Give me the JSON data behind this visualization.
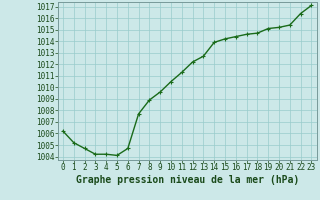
{
  "x": [
    0,
    1,
    2,
    3,
    4,
    5,
    6,
    7,
    8,
    9,
    10,
    11,
    12,
    13,
    14,
    15,
    16,
    17,
    18,
    19,
    20,
    21,
    22,
    23
  ],
  "y": [
    1006.2,
    1005.2,
    1004.7,
    1004.2,
    1004.2,
    1004.1,
    1004.7,
    1007.7,
    1008.9,
    1009.6,
    1010.5,
    1011.3,
    1012.2,
    1012.7,
    1013.9,
    1014.2,
    1014.4,
    1014.6,
    1014.7,
    1015.1,
    1015.2,
    1015.4,
    1016.4,
    1017.1
  ],
  "line_color": "#1a6b1a",
  "marker": "+",
  "marker_size": 3,
  "marker_linewidth": 0.8,
  "bg_color": "#cce8e8",
  "grid_color": "#99cccc",
  "xlabel": "Graphe pression niveau de la mer (hPa)",
  "xlabel_fontsize": 7,
  "ytick_min": 1004,
  "ytick_max": 1017,
  "ytick_step": 1,
  "xtick_labels": [
    "0",
    "1",
    "2",
    "3",
    "4",
    "5",
    "6",
    "7",
    "8",
    "9",
    "10",
    "11",
    "12",
    "13",
    "14",
    "15",
    "16",
    "17",
    "18",
    "19",
    "20",
    "21",
    "22",
    "23"
  ],
  "tick_fontsize": 5.5,
  "line_width": 1.0,
  "ylim_min": 1003.7,
  "ylim_max": 1017.4
}
